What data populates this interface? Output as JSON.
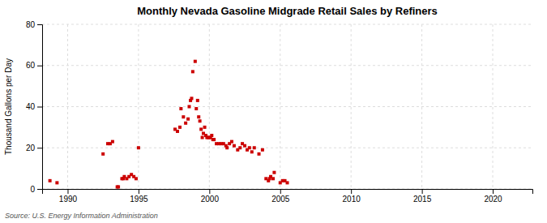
{
  "chart_data": {
    "type": "scatter",
    "title": "Monthly Nevada Gasoline Midgrade Retail Sales by Refiners",
    "ylabel": "Thousand Gallons per Day",
    "source": "Source: U.S. Energy Information Administration",
    "color": "#cc0000",
    "marker": "square",
    "grid": true,
    "xlim": [
      1988.2,
      2022.8
    ],
    "ylim": [
      0,
      80
    ],
    "xticks": [
      1990,
      1995,
      2000,
      2005,
      2010,
      2015,
      2020
    ],
    "yticks": [
      0,
      20,
      40,
      60,
      80
    ],
    "x": [
      1988.75,
      1989.25,
      1992.5,
      1992.83,
      1993.0,
      1993.17,
      1993.5,
      1993.58,
      1993.83,
      1993.92,
      1994.0,
      1994.17,
      1994.33,
      1994.5,
      1994.67,
      1994.83,
      1995.0,
      1997.58,
      1997.75,
      1997.92,
      1998.0,
      1998.17,
      1998.33,
      1998.5,
      1998.58,
      1998.67,
      1998.75,
      1998.83,
      1999.0,
      1999.08,
      1999.17,
      1999.25,
      1999.33,
      1999.42,
      1999.5,
      1999.58,
      1999.67,
      1999.75,
      1999.83,
      1999.92,
      2000.0,
      2000.08,
      2000.17,
      2000.25,
      2000.33,
      2000.5,
      2000.67,
      2000.83,
      2001.0,
      2001.17,
      2001.25,
      2001.42,
      2001.58,
      2001.75,
      2002.0,
      2002.17,
      2002.33,
      2002.5,
      2002.67,
      2002.83,
      2003.0,
      2003.17,
      2003.5,
      2003.75,
      2004.0,
      2004.17,
      2004.25,
      2004.33,
      2004.5,
      2004.58,
      2005.0,
      2005.17,
      2005.33,
      2005.5
    ],
    "values": [
      4,
      3,
      17,
      22,
      22,
      23,
      1,
      1,
      5,
      5,
      6,
      5,
      6,
      7,
      6,
      5,
      20,
      29,
      28,
      30,
      39,
      35,
      32,
      34,
      40,
      43,
      44,
      57,
      62,
      39,
      43,
      35,
      33,
      29,
      25,
      27,
      30,
      26,
      25,
      25,
      25,
      25,
      26,
      24,
      24,
      22,
      22,
      22,
      22,
      21,
      20,
      22,
      23,
      21,
      19,
      20,
      22,
      21,
      19,
      20,
      18,
      20,
      17,
      19,
      5,
      4,
      5,
      6,
      5,
      8,
      3,
      4,
      4,
      3
    ]
  }
}
